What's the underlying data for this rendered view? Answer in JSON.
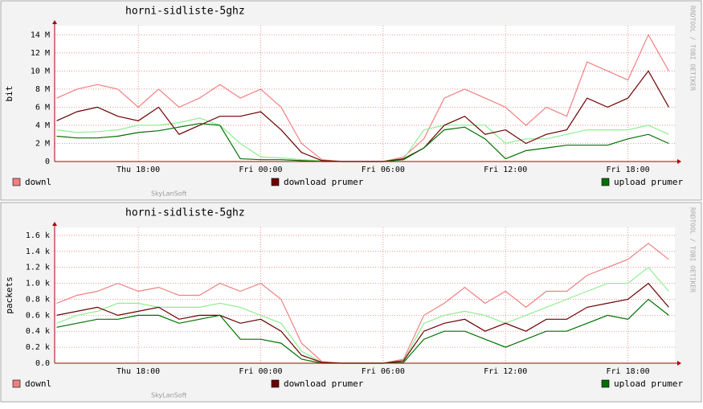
{
  "chart_data": [
    {
      "type": "line",
      "title": "horni-sidliste-5ghz",
      "y_label": "bit",
      "side_text": "RRDTOOL / TOBI OETIKER",
      "watermark": "SkyLanSoft",
      "x": [
        14,
        15,
        16,
        17,
        18,
        19,
        20,
        21,
        22,
        23,
        24,
        25,
        26,
        27,
        28,
        29,
        30,
        31,
        32,
        33,
        34,
        35,
        36,
        37,
        38,
        39,
        40,
        41,
        42,
        43,
        44
      ],
      "xlim": [
        13.9,
        44.3
      ],
      "xticks": [
        {
          "value": 18,
          "label": "Thu 18:00"
        },
        {
          "value": 24,
          "label": "Fri 00:00"
        },
        {
          "value": 30,
          "label": "Fri 06:00"
        },
        {
          "value": 36,
          "label": "Fri 12:00"
        },
        {
          "value": 42,
          "label": "Fri 18:00"
        }
      ],
      "ylim": [
        0,
        15
      ],
      "yticks": [
        0,
        {
          "value": 2,
          "label": "2 M"
        },
        {
          "value": 4,
          "label": "4 M"
        },
        {
          "value": 6,
          "label": "6 M"
        },
        {
          "value": 8,
          "label": "8 M"
        },
        {
          "value": 10,
          "label": "10 M"
        },
        {
          "value": 12,
          "label": "12 M"
        },
        {
          "value": 14,
          "label": "14 M"
        }
      ],
      "grid": true,
      "series": [
        {
          "name": "downl",
          "color": "#f08080",
          "values": [
            7,
            8,
            8.5,
            8,
            6,
            8,
            6,
            7,
            8.5,
            7,
            8,
            6,
            2,
            0.2,
            0,
            0,
            0,
            0.5,
            2.5,
            7,
            8,
            7,
            6,
            4,
            6,
            5,
            11,
            10,
            9,
            14,
            10
          ]
        },
        {
          "color": "#90ee90",
          "values": [
            3.5,
            3.2,
            3.3,
            3.5,
            4,
            4,
            4.3,
            4.8,
            4,
            2,
            0.5,
            0.4,
            0.2,
            0.1,
            0,
            0,
            0,
            0.3,
            3.5,
            4,
            4,
            4,
            2,
            2.5,
            2.5,
            3,
            3.5,
            3.5,
            3.5,
            4,
            3
          ]
        },
        {
          "name": "download prumer",
          "color": "#6b0000",
          "values": [
            4.5,
            5.5,
            6,
            5,
            4.5,
            6,
            3,
            4,
            5,
            5,
            5.5,
            3.5,
            1,
            0.1,
            0,
            0,
            0,
            0.3,
            1.5,
            4,
            5,
            3,
            3.5,
            2,
            3,
            3.5,
            7,
            6,
            7,
            10,
            6
          ]
        },
        {
          "name": "upload prumer",
          "color": "#007000",
          "values": [
            2.8,
            2.6,
            2.6,
            2.8,
            3.2,
            3.4,
            3.8,
            4.2,
            4,
            0.3,
            0.2,
            0.2,
            0.1,
            0,
            0,
            0,
            0,
            0.2,
            1.5,
            3.5,
            3.8,
            2.5,
            0.3,
            1.2,
            1.5,
            1.8,
            1.8,
            1.8,
            2.5,
            3,
            2
          ]
        }
      ]
    },
    {
      "type": "line",
      "title": "horni-sidliste-5ghz",
      "y_label": "packets",
      "side_text": "RRDTOOL / TOBI OETIKER",
      "watermark": "SkyLanSoft",
      "x": [
        14,
        15,
        16,
        17,
        18,
        19,
        20,
        21,
        22,
        23,
        24,
        25,
        26,
        27,
        28,
        29,
        30,
        31,
        32,
        33,
        34,
        35,
        36,
        37,
        38,
        39,
        40,
        41,
        42,
        43,
        44
      ],
      "xlim": [
        13.9,
        44.3
      ],
      "xticks": [
        {
          "value": 18,
          "label": "Thu 18:00"
        },
        {
          "value": 24,
          "label": "Fri 00:00"
        },
        {
          "value": 30,
          "label": "Fri 06:00"
        },
        {
          "value": 36,
          "label": "Fri 12:00"
        },
        {
          "value": 42,
          "label": "Fri 18:00"
        }
      ],
      "ylim": [
        0,
        1.7
      ],
      "yticks": [
        {
          "value": 0,
          "label": "0.0"
        },
        {
          "value": 0.2,
          "label": "0.2 k"
        },
        {
          "value": 0.4,
          "label": "0.4 k"
        },
        {
          "value": 0.6,
          "label": "0.6 k"
        },
        {
          "value": 0.8,
          "label": "0.8 k"
        },
        {
          "value": 1.0,
          "label": "1.0 k"
        },
        {
          "value": 1.2,
          "label": "1.2 k"
        },
        {
          "value": 1.4,
          "label": "1.4 k"
        },
        {
          "value": 1.6,
          "label": "1.6 k"
        }
      ],
      "grid": true,
      "series": [
        {
          "name": "downl",
          "color": "#f08080",
          "values": [
            0.75,
            0.85,
            0.9,
            1.0,
            0.9,
            0.95,
            0.85,
            0.85,
            1.0,
            0.9,
            1.0,
            0.8,
            0.25,
            0.02,
            0,
            0,
            0,
            0.05,
            0.6,
            0.75,
            0.95,
            0.75,
            0.9,
            0.7,
            0.9,
            0.9,
            1.1,
            1.2,
            1.3,
            1.5,
            1.3
          ]
        },
        {
          "color": "#90ee90",
          "values": [
            0.5,
            0.6,
            0.65,
            0.75,
            0.75,
            0.7,
            0.7,
            0.7,
            0.75,
            0.7,
            0.6,
            0.5,
            0.15,
            0.01,
            0,
            0,
            0,
            0.03,
            0.5,
            0.6,
            0.65,
            0.6,
            0.5,
            0.6,
            0.7,
            0.8,
            0.9,
            1.0,
            1.0,
            1.2,
            0.9
          ]
        },
        {
          "name": "download prumer",
          "color": "#6b0000",
          "values": [
            0.6,
            0.65,
            0.7,
            0.6,
            0.65,
            0.7,
            0.55,
            0.6,
            0.6,
            0.5,
            0.55,
            0.4,
            0.1,
            0.01,
            0,
            0,
            0,
            0.03,
            0.4,
            0.5,
            0.55,
            0.4,
            0.5,
            0.4,
            0.55,
            0.55,
            0.7,
            0.75,
            0.8,
            1.0,
            0.7
          ]
        },
        {
          "name": "upload prumer",
          "color": "#007000",
          "values": [
            0.45,
            0.5,
            0.55,
            0.55,
            0.6,
            0.6,
            0.5,
            0.55,
            0.6,
            0.3,
            0.3,
            0.25,
            0.05,
            0,
            0,
            0,
            0,
            0.01,
            0.3,
            0.4,
            0.4,
            0.3,
            0.2,
            0.3,
            0.4,
            0.4,
            0.5,
            0.6,
            0.55,
            0.8,
            0.6
          ]
        }
      ]
    }
  ]
}
